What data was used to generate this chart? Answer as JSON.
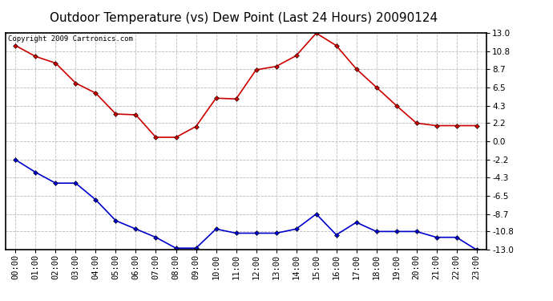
{
  "title": "Outdoor Temperature (vs) Dew Point (Last 24 Hours) 20090124",
  "copyright": "Copyright 2009 Cartronics.com",
  "hours": [
    "00:00",
    "01:00",
    "02:00",
    "03:00",
    "04:00",
    "05:00",
    "06:00",
    "07:00",
    "08:00",
    "09:00",
    "10:00",
    "11:00",
    "12:00",
    "13:00",
    "14:00",
    "15:00",
    "16:00",
    "17:00",
    "18:00",
    "19:00",
    "20:00",
    "21:00",
    "22:00",
    "23:00"
  ],
  "temp": [
    11.5,
    10.2,
    9.4,
    7.0,
    5.8,
    3.3,
    3.2,
    0.5,
    0.5,
    1.8,
    5.2,
    5.1,
    8.6,
    9.0,
    10.3,
    13.0,
    11.5,
    8.7,
    6.5,
    4.3,
    2.2,
    1.9,
    1.9,
    1.9
  ],
  "dew": [
    -2.2,
    -3.7,
    -5.0,
    -5.0,
    -7.0,
    -9.5,
    -10.5,
    -11.5,
    -12.8,
    -12.8,
    -10.5,
    -11.0,
    -11.0,
    -11.0,
    -10.5,
    -8.7,
    -11.2,
    -9.7,
    -10.8,
    -10.8,
    -10.8,
    -11.5,
    -11.5,
    -13.0
  ],
  "yticks": [
    13.0,
    10.8,
    8.7,
    6.5,
    4.3,
    2.2,
    0.0,
    -2.2,
    -4.3,
    -6.5,
    -8.7,
    -10.8,
    -13.0
  ],
  "ylim": [
    -13.0,
    13.0
  ],
  "temp_color": "#cc0000",
  "dew_color": "#0000cc",
  "bg_color": "#ffffff",
  "grid_color": "#bbbbbb",
  "title_fontsize": 11,
  "copyright_fontsize": 6.5,
  "tick_fontsize": 7.5,
  "ytick_fontsize": 7.5
}
